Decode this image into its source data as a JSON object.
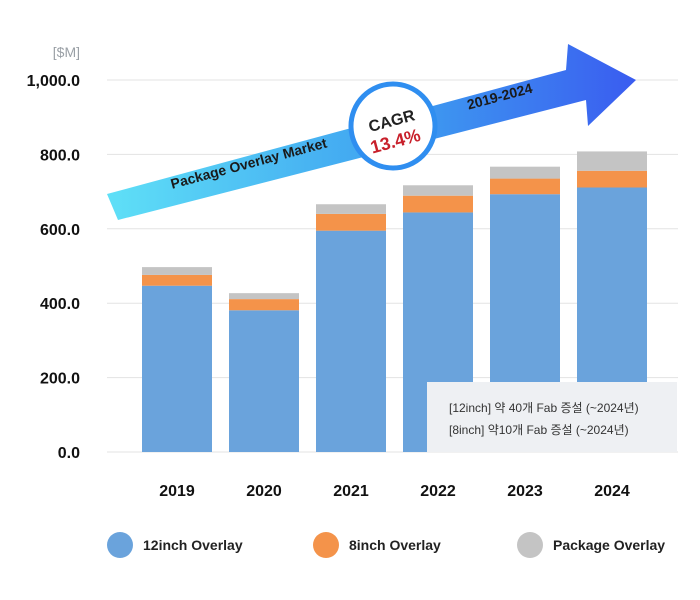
{
  "chart_data": {
    "type": "bar",
    "stacked": true,
    "unit_label": "[$M]",
    "categories": [
      "2019",
      "2020",
      "2021",
      "2022",
      "2023",
      "2024"
    ],
    "series": [
      {
        "name": "12inch Overlay",
        "color": "#6aa3dc",
        "values": [
          447,
          381,
          595,
          644,
          693,
          711
        ]
      },
      {
        "name": "8inch Overlay",
        "color": "#f4934a",
        "values": [
          29,
          30,
          45,
          45,
          42,
          45
        ]
      },
      {
        "name": "Package Overlay",
        "color": "#c4c4c4",
        "values": [
          21,
          16,
          26,
          28,
          32,
          52
        ]
      }
    ],
    "y_ticks": [
      "0.0",
      "200.0",
      "400.0",
      "600.0",
      "800.0",
      "1,000.0"
    ],
    "ylim": [
      0,
      1000
    ],
    "grid": true,
    "legend_position": "bottom",
    "annotations": {
      "banner_title": "Package Overlay Market",
      "period": "2019-2024",
      "cagr_label": "CAGR",
      "cagr_value": "13.4%"
    }
  },
  "note": {
    "line1": "[12inch] 약 40개 Fab 증설 (~2024년)",
    "line2": "[8inch] 약10개 Fab 증설 (~2024년)"
  }
}
